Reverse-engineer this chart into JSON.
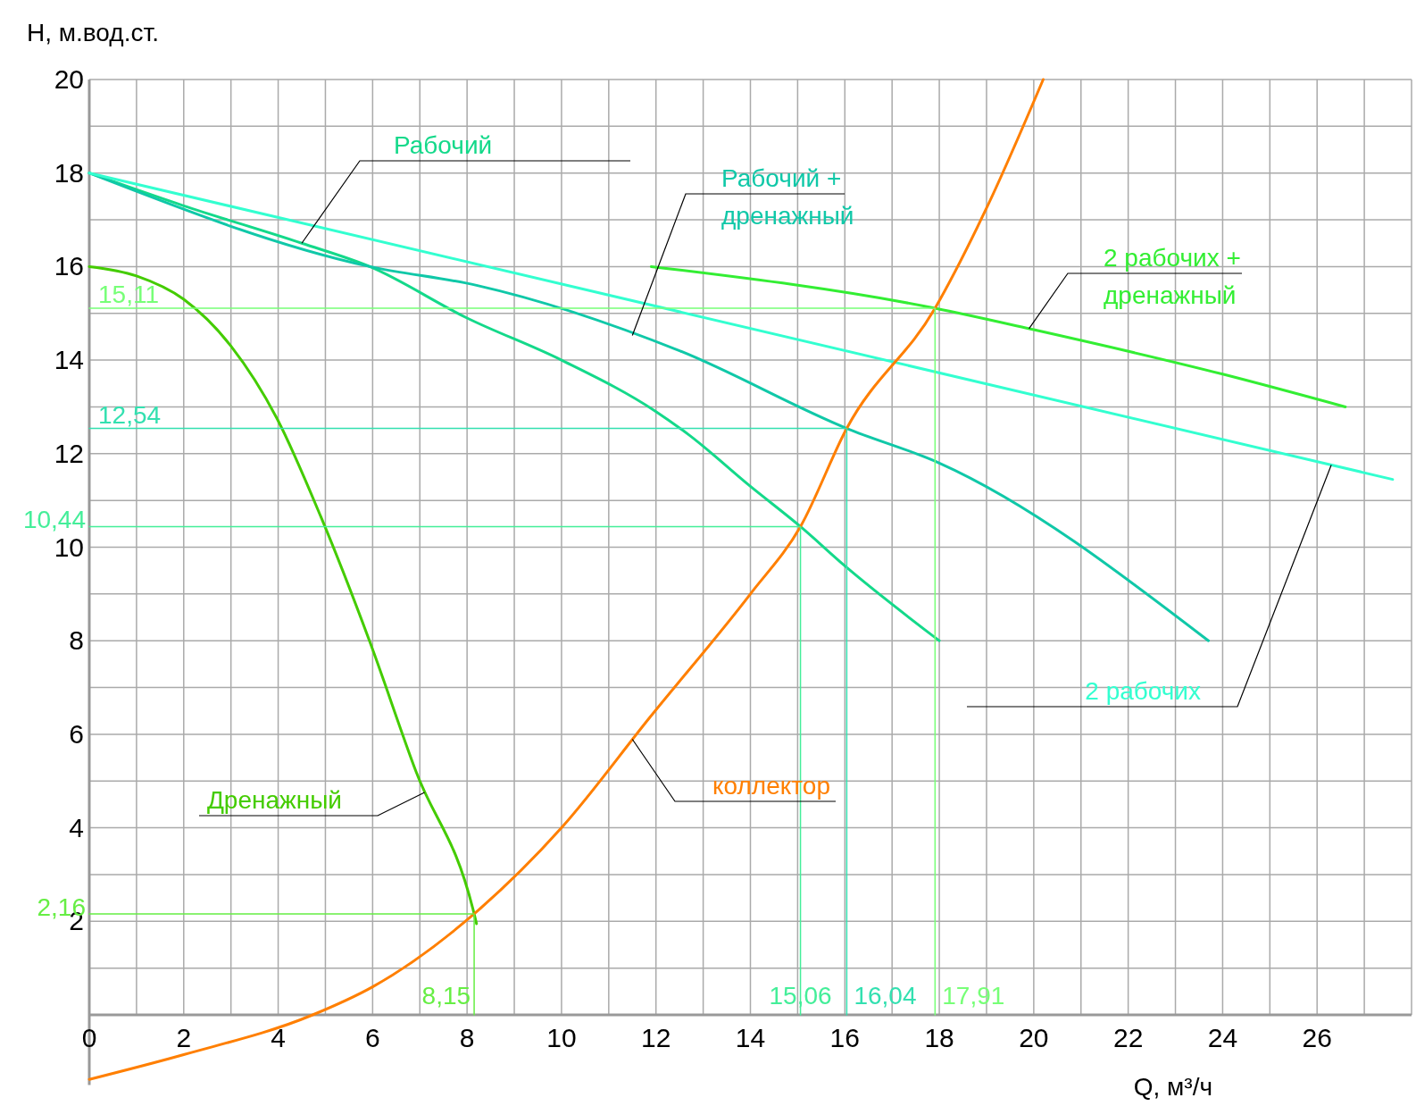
{
  "chart_data": {
    "type": "line",
    "xlabel": "Q, м³/ч",
    "ylabel": "H, м.вод.ст.",
    "xlim": [
      0,
      28
    ],
    "ylim": [
      -1.5,
      20
    ],
    "xticks": [
      0,
      {
        "value": 1,
        "label": null
      },
      2,
      {
        "value": 3,
        "label": null
      },
      4,
      {
        "value": 5,
        "label": null
      },
      6,
      {
        "value": 7,
        "label": null
      },
      8,
      {
        "value": 9,
        "label": null
      },
      10,
      {
        "value": 11,
        "label": null
      },
      12,
      {
        "value": 13,
        "label": null
      },
      14,
      {
        "value": 15,
        "label": null
      },
      16,
      {
        "value": 17,
        "label": null
      },
      18,
      {
        "value": 19,
        "label": null
      },
      20,
      {
        "value": 21,
        "label": null
      },
      22,
      {
        "value": 23,
        "label": null
      },
      24,
      {
        "value": 25,
        "label": null
      },
      26,
      {
        "value": 27,
        "label": null
      },
      {
        "value": 28,
        "label": null
      }
    ],
    "yticks": [
      {
        "value": 1,
        "label": null
      },
      2,
      {
        "value": 3,
        "label": null
      },
      4,
      {
        "value": 5,
        "label": null
      },
      6,
      {
        "value": 7,
        "label": null
      },
      8,
      {
        "value": 9,
        "label": null
      },
      10,
      {
        "value": 11,
        "label": null
      },
      12,
      {
        "value": 13,
        "label": null
      },
      14,
      {
        "value": 15,
        "label": null
      },
      16,
      {
        "value": 17,
        "label": null
      },
      18,
      {
        "value": 19,
        "label": null
      },
      20
    ],
    "grid": true,
    "series": [
      {
        "name": "Дренажный",
        "color": "#44cc00",
        "x": [
          0,
          1,
          2,
          3,
          3.97,
          4.9,
          5.94,
          6.92,
          8.15,
          8.2
        ],
        "values": [
          16,
          15.8,
          15.3,
          14.3,
          12.76,
          10.66,
          7.98,
          5.2,
          2.16,
          1.95
        ]
      },
      {
        "name": "Рабочий",
        "color": "#14d98a",
        "x": [
          0,
          2,
          4.5,
          5.94,
          8,
          10,
          12,
          12.7,
          14,
          15.06,
          16,
          18
        ],
        "values": [
          18,
          17.3,
          16.5,
          16,
          14.9,
          14,
          12.9,
          12.4,
          11.3,
          10.44,
          9.6,
          8
        ]
      },
      {
        "name": "Рабочий + дренажный",
        "color": "#10c8a8",
        "x": [
          0,
          5.94,
          8.2,
          12.5,
          16.04,
          18,
          23.7
        ],
        "values": [
          18,
          16,
          15.6,
          14.2,
          12.54,
          11.8,
          8
        ]
      },
      {
        "name": "2 рабочих",
        "color": "#33ffd0",
        "x": [
          0,
          27.6
        ],
        "values": [
          18,
          11.45
        ]
      },
      {
        "name": "2 рабочих + дренажный",
        "color": "#33ee33",
        "x": [
          11.9,
          17.91,
          20,
          24,
          26.6
        ],
        "values": [
          16,
          15.11,
          14.65,
          13.7,
          13
        ]
      },
      {
        "name": "коллектор",
        "color": "#ff7f00",
        "x": [
          0,
          2,
          4.73,
          6,
          8.15,
          10,
          11.87,
          14,
          15.06,
          16.04,
          17.91,
          19,
          20.2
        ],
        "values": [
          -1.38,
          -0.85,
          0,
          0.6,
          2.16,
          4,
          6.36,
          9,
          10.44,
          12.54,
          15.11,
          17.25,
          20
        ]
      },
      {
        "color": "#77ff77",
        "x": [
          0,
          17.91,
          17.91
        ],
        "values": [
          15.11,
          15.11,
          0
        ]
      },
      {
        "color": "#33e0b0",
        "x": [
          0,
          16.04,
          16.04
        ],
        "values": [
          12.54,
          12.54,
          0
        ]
      },
      {
        "color": "#44ee99",
        "x": [
          0,
          15.06,
          15.06
        ],
        "values": [
          10.44,
          10.44,
          0
        ]
      },
      {
        "color": "#66ee44",
        "x": [
          0,
          8.15,
          8.15
        ],
        "values": [
          2.16,
          2.16,
          0
        ]
      }
    ],
    "annotations": [
      {
        "text": "15,11",
        "x": 0,
        "y": 15.11
      },
      {
        "text": "12,54",
        "x": 0,
        "y": 12.54
      },
      {
        "text": "10,44",
        "x": 0,
        "y": 10.44
      },
      {
        "text": "2,16",
        "x": 0,
        "y": 2.16
      },
      {
        "text": "8,15",
        "x": 8.15,
        "y": 0
      },
      {
        "text": "15,06",
        "x": 15.06,
        "y": 0
      },
      {
        "text": "16,04",
        "x": 16.04,
        "y": 0
      },
      {
        "text": "17,91",
        "x": 17.91,
        "y": 0
      }
    ]
  }
}
